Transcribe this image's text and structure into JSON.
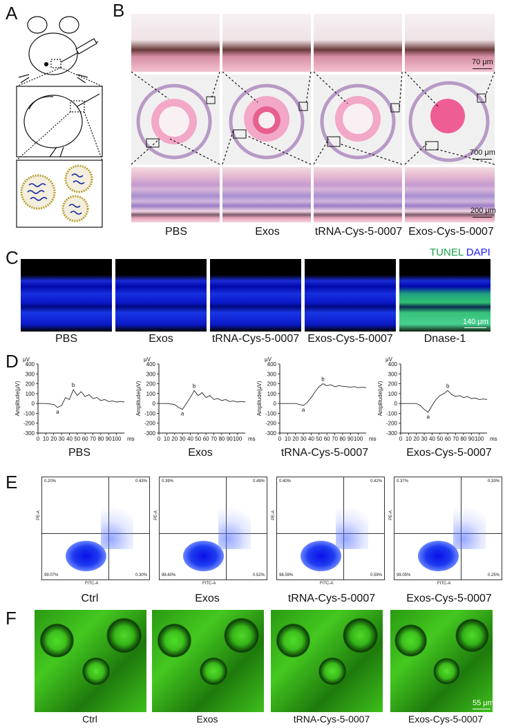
{
  "panels": {
    "A": "A",
    "B": "B",
    "C": "C",
    "D": "D",
    "E": "E",
    "F": "F"
  },
  "B": {
    "groups": [
      "PBS",
      "Exos",
      "tRNA-Cys-5-0007",
      "Exos-Cys-5-0007"
    ],
    "scale_top": "70 μm",
    "scale_mid": "700 μm",
    "scale_bot": "200 μm"
  },
  "C": {
    "legend_tunel": "TUNEL",
    "legend_dapi": "DAPI",
    "legend_colors": {
      "tunel": "#1aa04a",
      "dapi": "#1a1aff"
    },
    "groups": [
      "PBS",
      "Exos",
      "tRNA-Cys-5-0007",
      "Exos-Cys-5-0007",
      "Dnase-1"
    ],
    "scale": "140 μm"
  },
  "D": {
    "groups": [
      "PBS",
      "Exos",
      "tRNA-Cys-5-0007",
      "Exos-Cys-5-0007"
    ],
    "unit_y": "μV",
    "ylabel": "Amplitude(μV)",
    "unit_x": "ms",
    "yticks": [
      400,
      300,
      200,
      100,
      0,
      -100,
      -200,
      -300
    ],
    "xticks": [
      0,
      10,
      20,
      30,
      40,
      50,
      60,
      70,
      80,
      90,
      100
    ],
    "wave_a": "a",
    "wave_b": "b"
  },
  "E": {
    "groups": [
      "Ctrl",
      "Exos",
      "tRNA-Cys-5-0007",
      "Exos-Cys-5-0007"
    ],
    "xaxis": "FITC-A",
    "yaxis": "PE-A",
    "quadrants": [
      {
        "ul": "0.20%",
        "ur": "0.43%",
        "ll": "99.07%",
        "lr": "0.30%"
      },
      {
        "ul": "0.39%",
        "ur": "0.49%",
        "ll": "98.60%",
        "lr": "0.52%"
      },
      {
        "ul": "0.40%",
        "ur": "0.42%",
        "ll": "98.59%",
        "lr": "0.59%"
      },
      {
        "ul": "0.37%",
        "ur": "0.33%",
        "ll": "99.05%",
        "lr": "0.25%"
      }
    ]
  },
  "F": {
    "groups": [
      "Ctrl",
      "Exos",
      "tRNA-Cys-5-0007",
      "Exos-Cys-5-0007"
    ],
    "scale": "55 μm"
  },
  "chart_data": [
    {
      "type": "line",
      "title": "PBS",
      "xlabel": "ms",
      "ylabel": "Amplitude(μV)",
      "xlim": [
        0,
        110
      ],
      "ylim": [
        -300,
        400
      ],
      "x": [
        0,
        10,
        20,
        25,
        30,
        35,
        40,
        45,
        50,
        55,
        60,
        65,
        70,
        75,
        80,
        85,
        90,
        95,
        100,
        105,
        110
      ],
      "y": [
        0,
        0,
        -10,
        -40,
        -20,
        60,
        40,
        140,
        80,
        120,
        70,
        90,
        50,
        60,
        30,
        40,
        20,
        25,
        15,
        20,
        15
      ]
    },
    {
      "type": "line",
      "title": "Exos",
      "xlabel": "ms",
      "ylabel": "Amplitude(μV)",
      "xlim": [
        0,
        110
      ],
      "ylim": [
        -300,
        400
      ],
      "x": [
        0,
        10,
        20,
        25,
        30,
        35,
        40,
        45,
        50,
        55,
        60,
        65,
        70,
        75,
        80,
        85,
        90,
        95,
        100,
        105,
        110
      ],
      "y": [
        0,
        0,
        -10,
        -40,
        -60,
        0,
        60,
        130,
        80,
        110,
        60,
        80,
        40,
        50,
        30,
        40,
        20,
        25,
        15,
        20,
        15
      ]
    },
    {
      "type": "line",
      "title": "tRNA-Cys-5-0007",
      "xlabel": "ms",
      "ylabel": "Amplitude(μV)",
      "xlim": [
        0,
        110
      ],
      "ylim": [
        -300,
        400
      ],
      "x": [
        0,
        10,
        20,
        25,
        30,
        35,
        40,
        45,
        50,
        55,
        60,
        65,
        70,
        75,
        80,
        85,
        90,
        95,
        100,
        105,
        110
      ],
      "y": [
        0,
        0,
        0,
        -10,
        -20,
        10,
        60,
        120,
        170,
        200,
        180,
        190,
        170,
        180,
        175,
        170,
        165,
        170,
        160,
        165,
        160
      ]
    },
    {
      "type": "line",
      "title": "Exos-Cys-5-0007",
      "xlabel": "ms",
      "ylabel": "Amplitude(μV)",
      "xlim": [
        0,
        110
      ],
      "ylim": [
        -300,
        400
      ],
      "x": [
        0,
        10,
        20,
        25,
        30,
        35,
        40,
        45,
        50,
        55,
        60,
        65,
        70,
        75,
        80,
        85,
        90,
        95,
        100,
        105,
        110
      ],
      "y": [
        0,
        0,
        0,
        -20,
        -60,
        -90,
        -20,
        40,
        80,
        100,
        130,
        90,
        70,
        80,
        60,
        70,
        50,
        55,
        40,
        45,
        40
      ]
    }
  ]
}
